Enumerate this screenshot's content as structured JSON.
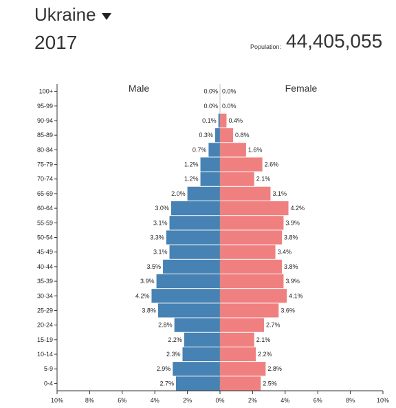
{
  "header": {
    "country": "Ukraine",
    "year": "2017",
    "population_label": "Population:",
    "population_value": "44,405,055"
  },
  "colors": {
    "male": "#4682b4",
    "female": "#f08080"
  },
  "chart_data": {
    "type": "bar",
    "orientation": "horizontal-pyramid",
    "legend": [
      "Male",
      "Female"
    ],
    "categories": [
      "100+",
      "95-99",
      "90-94",
      "85-89",
      "80-84",
      "75-79",
      "70-74",
      "65-69",
      "60-64",
      "55-59",
      "50-54",
      "45-49",
      "40-44",
      "35-39",
      "30-34",
      "25-29",
      "20-24",
      "15-19",
      "10-14",
      "5-9",
      "0-4"
    ],
    "series": [
      {
        "name": "Male",
        "values": [
          0.0,
          0.0,
          0.1,
          0.3,
          0.7,
          1.2,
          1.2,
          2.0,
          3.0,
          3.1,
          3.3,
          3.1,
          3.5,
          3.9,
          4.2,
          3.8,
          2.8,
          2.2,
          2.3,
          2.9,
          2.7
        ]
      },
      {
        "name": "Female",
        "values": [
          0.0,
          0.0,
          0.4,
          0.8,
          1.6,
          2.6,
          2.1,
          3.1,
          4.2,
          3.9,
          3.8,
          3.4,
          3.8,
          3.9,
          4.1,
          3.6,
          2.7,
          2.1,
          2.2,
          2.8,
          2.5
        ]
      }
    ],
    "xlim": [
      -10,
      10
    ],
    "x_ticks": [
      "10%",
      "8%",
      "6%",
      "4%",
      "2%",
      "0%",
      "2%",
      "4%",
      "6%",
      "8%",
      "10%"
    ],
    "unit": "%"
  }
}
